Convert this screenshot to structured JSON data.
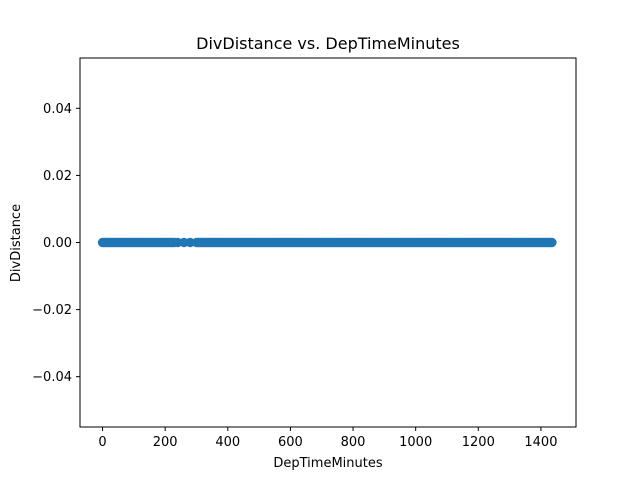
{
  "chart_data": {
    "type": "scatter",
    "title": "DivDistance vs. DepTimeMinutes",
    "xlabel": "DepTimeMinutes",
    "ylabel": "DivDistance",
    "xlim": [
      -72,
      1512
    ],
    "ylim": [
      -0.055,
      0.055
    ],
    "x_ticks": [
      0,
      200,
      400,
      600,
      800,
      1000,
      1200,
      1400
    ],
    "y_ticks": [
      -0.04,
      -0.02,
      0.0,
      0.02,
      0.04
    ],
    "x_tick_labels": [
      "0",
      "200",
      "400",
      "600",
      "800",
      "1000",
      "1200",
      "1400"
    ],
    "y_tick_labels": [
      "−0.04",
      "−0.02",
      "0.00",
      "0.02",
      "0.04"
    ],
    "grid": false,
    "marker_color": "#1f77b4",
    "series": [
      {
        "x_range": [
          0,
          1439
        ],
        "sparse_x_range": [
          230,
          300
        ],
        "y": 0.0
      }
    ]
  }
}
